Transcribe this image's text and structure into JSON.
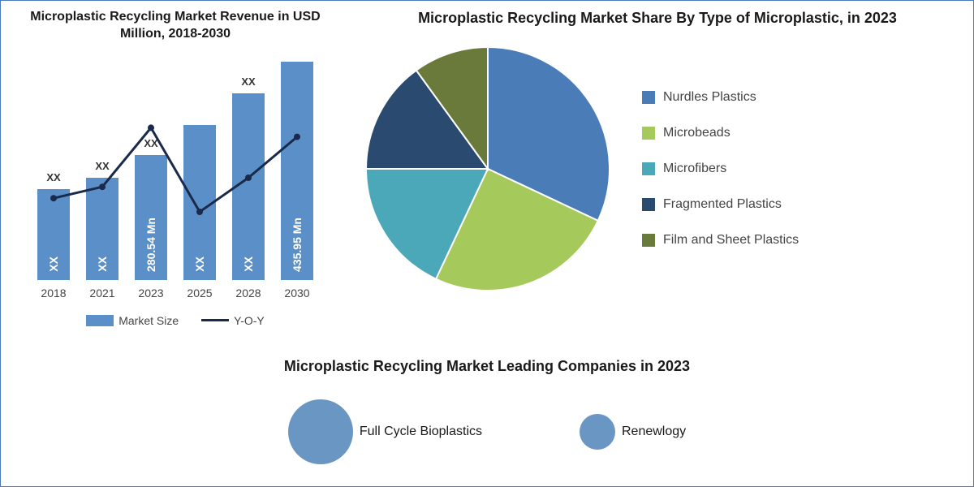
{
  "colors": {
    "bar": "#5b8fc8",
    "line": "#1a2a4a",
    "border": "#4a7db8",
    "text": "#444444",
    "title": "#1a1a1a",
    "bg": "#ffffff"
  },
  "bar_chart": {
    "title": "Microplastic Recycling Market Revenue in USD Million, 2018-2030",
    "title_fontsize": 16,
    "categories": [
      "2018",
      "2021",
      "2023",
      "2025",
      "2028",
      "2030"
    ],
    "bar_heights_pct": [
      40,
      45,
      55,
      68,
      82,
      96
    ],
    "bar_values": [
      "XX",
      "XX",
      "280.54 Mn",
      "XX",
      "XX",
      "435.95 Mn"
    ],
    "bar_top_labels": [
      "XX",
      "XX",
      "XX",
      "",
      "XX",
      ""
    ],
    "yoy_points_pct": [
      64,
      59,
      33,
      70,
      55,
      37
    ],
    "legend": {
      "market_size": "Market Size",
      "yoy": "Y-O-Y"
    }
  },
  "pie_chart": {
    "title": "Microplastic Recycling Market Share By Type of Microplastic, in 2023",
    "title_fontsize": 18,
    "slices": [
      {
        "label": "Nurdles Plastics",
        "value": 32,
        "color": "#4a7db8"
      },
      {
        "label": "Microbeads",
        "value": 25,
        "color": "#a5c95b"
      },
      {
        "label": "Microfibers",
        "value": 18,
        "color": "#4aa8b8"
      },
      {
        "label": "Fragmented Plastics",
        "value": 15,
        "color": "#2a4a6f"
      },
      {
        "label": "Film and Sheet Plastics",
        "value": 10,
        "color": "#6a7a3a"
      }
    ]
  },
  "companies": {
    "title": "Microplastic Recycling Market Leading Companies in 2023",
    "bubbles": [
      {
        "label": "Full Cycle Bioplastics",
        "radius": 40,
        "color": "#6a96c4"
      },
      {
        "label": "Renewlogy",
        "radius": 22,
        "color": "#6a96c4"
      }
    ]
  }
}
